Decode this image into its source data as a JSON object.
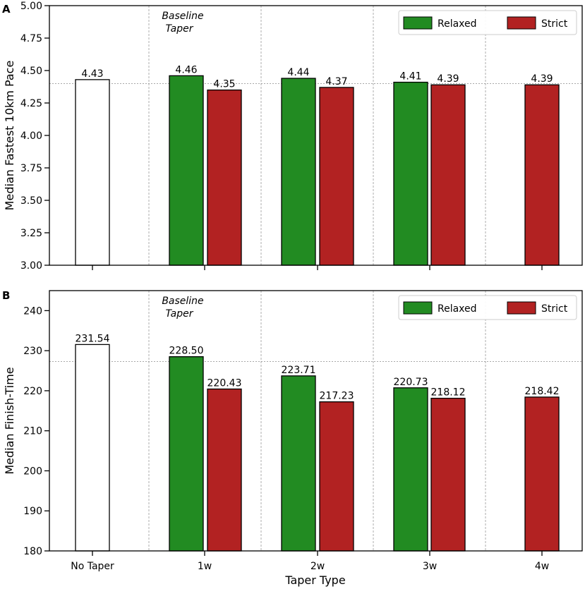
{
  "figure": {
    "xlabel": "Taper Type",
    "categories": [
      "No Taper",
      "1w",
      "2w",
      "3w",
      "4w"
    ],
    "series_names": [
      "Relaxed",
      "Strict"
    ],
    "colors": {
      "relaxed": "#228b22",
      "strict": "#b22222",
      "none": "#ffffff",
      "edge": "#000000"
    }
  },
  "chart_data": [
    {
      "type": "bar",
      "panel": "A",
      "ylabel": "Median Fastest 10km Pace",
      "ylim": [
        3.0,
        5.0
      ],
      "yticks": [
        3.0,
        3.25,
        3.5,
        3.75,
        4.0,
        4.25,
        4.5,
        4.75,
        5.0
      ],
      "ytick_labels": [
        "3.00",
        "3.25",
        "3.50",
        "3.75",
        "4.00",
        "4.25",
        "4.50",
        "4.75",
        "5.00"
      ],
      "baseline_value": 4.4,
      "annotation": [
        "Baseline",
        "Taper"
      ],
      "legend": {
        "location": "top-right",
        "entries": [
          "Relaxed",
          "Strict"
        ]
      },
      "categories": [
        "No Taper",
        "1w",
        "2w",
        "3w",
        "4w"
      ],
      "no_taper": {
        "value": 4.43,
        "label": "4.43"
      },
      "series": [
        {
          "name": "Relaxed",
          "values": [
            null,
            4.46,
            4.44,
            4.41,
            null
          ],
          "labels": [
            null,
            "4.46",
            "4.44",
            "4.41",
            null
          ]
        },
        {
          "name": "Strict",
          "values": [
            null,
            4.35,
            4.37,
            4.39,
            4.39
          ],
          "labels": [
            null,
            "4.35",
            "4.37",
            "4.39",
            "4.39"
          ]
        }
      ]
    },
    {
      "type": "bar",
      "panel": "B",
      "ylabel": "Median Finish-Time",
      "ylim": [
        180,
        245
      ],
      "yticks": [
        180,
        190,
        200,
        210,
        220,
        230,
        240
      ],
      "ytick_labels": [
        "180",
        "190",
        "200",
        "210",
        "220",
        "230",
        "240"
      ],
      "baseline_value": 227.3,
      "annotation": [
        "Baseline",
        "Taper"
      ],
      "legend": {
        "location": "top-right",
        "entries": [
          "Relaxed",
          "Strict"
        ]
      },
      "categories": [
        "No Taper",
        "1w",
        "2w",
        "3w",
        "4w"
      ],
      "no_taper": {
        "value": 231.54,
        "label": "231.54"
      },
      "series": [
        {
          "name": "Relaxed",
          "values": [
            null,
            228.5,
            223.71,
            220.73,
            null
          ],
          "labels": [
            null,
            "228.50",
            "223.71",
            "220.73",
            null
          ]
        },
        {
          "name": "Strict",
          "values": [
            null,
            220.43,
            217.23,
            218.12,
            218.42
          ],
          "labels": [
            null,
            "220.43",
            "217.23",
            "218.12",
            "218.42"
          ]
        }
      ]
    }
  ]
}
